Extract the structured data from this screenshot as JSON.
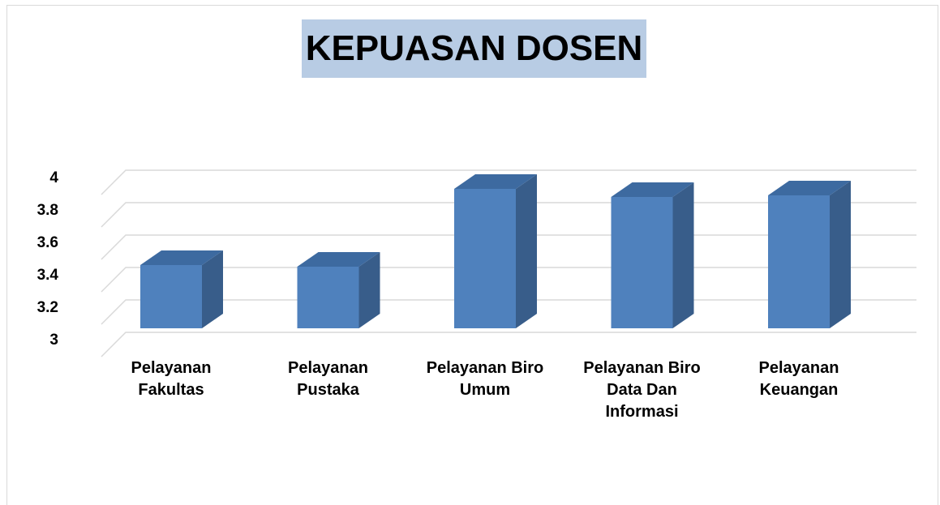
{
  "chart_data": {
    "type": "bar3d",
    "title": "KEPUASAN DOSEN",
    "categories": [
      "Pelayanan Fakultas",
      "Pelayanan Pustaka",
      "Pelayanan Biro Umum",
      "Pelayanan Biro Data Dan Informasi",
      "Pelayanan Keuangan"
    ],
    "values": [
      3.39,
      3.38,
      3.86,
      3.81,
      3.82
    ],
    "color": "#4f81bd",
    "ylim": [
      3,
      4.2
    ],
    "yticks": [
      3,
      3.2,
      3.4,
      3.6,
      3.8,
      4
    ],
    "grid": true
  }
}
